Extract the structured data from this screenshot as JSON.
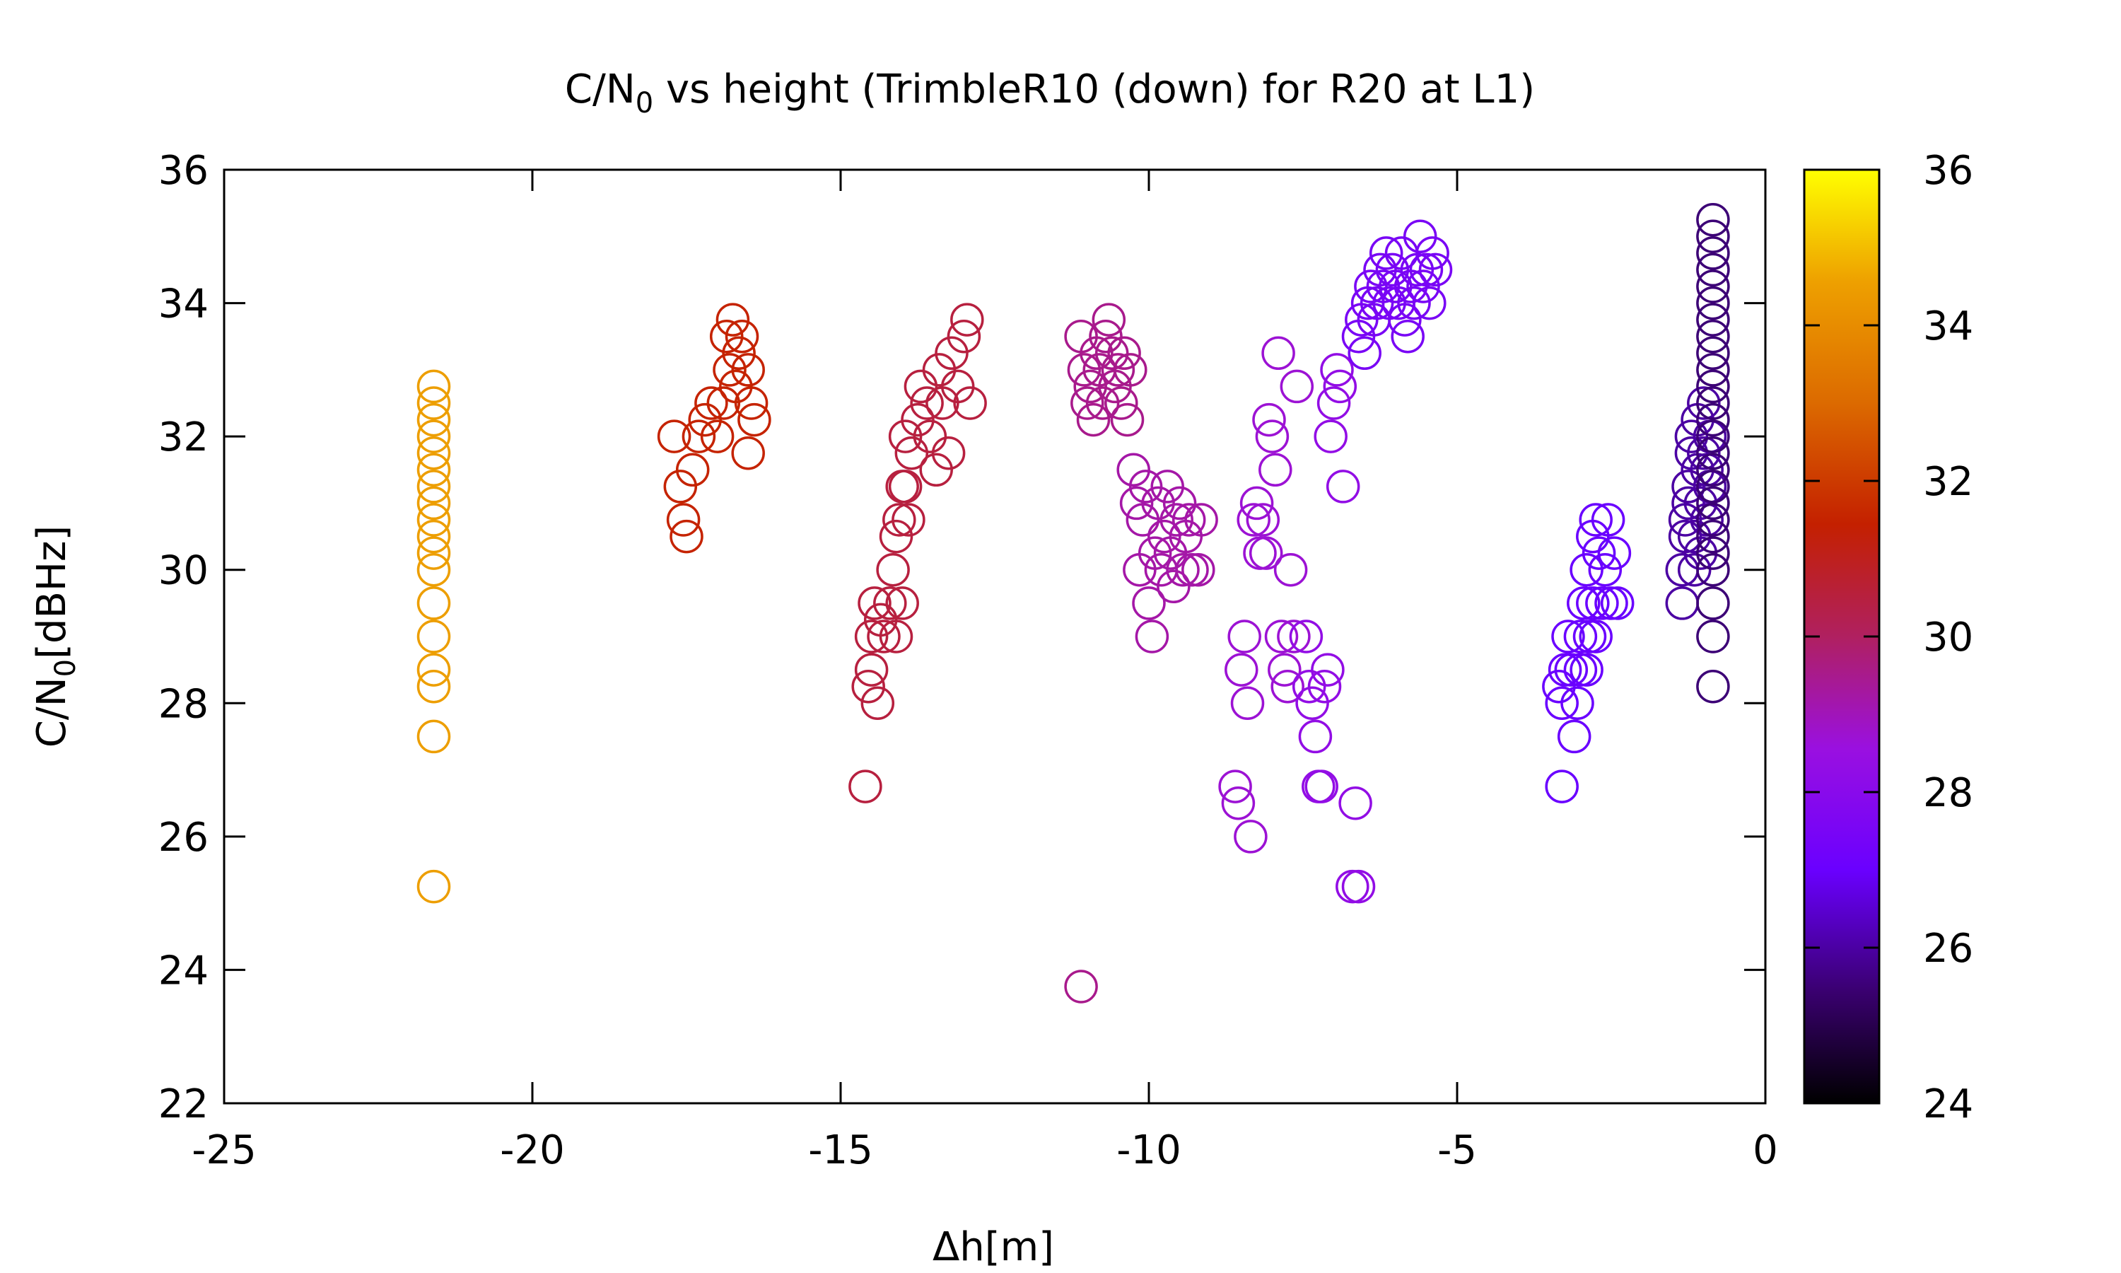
{
  "chart_data": {
    "type": "scatter",
    "title": "C/N",
    "title_subscript": "0",
    "title_rest": " vs height (TrimbleR10 (down) for R20 at L1)",
    "xlabel": "Δh[m]",
    "ylabel": "C/N",
    "ylabel_subscript": "0",
    "ylabel_rest": "[dBHz]",
    "xlim": [
      -25,
      0
    ],
    "ylim": [
      22,
      36
    ],
    "xticks": [
      -25,
      -20,
      -15,
      -10,
      -5,
      0
    ],
    "yticks": [
      22,
      24,
      26,
      28,
      30,
      32,
      34,
      36
    ],
    "xtick_labels": [
      "-25",
      "-20",
      "-15",
      "-10",
      "-5",
      "0"
    ],
    "ytick_labels": [
      "22",
      "24",
      "26",
      "28",
      "30",
      "32",
      "34",
      "36"
    ],
    "colorbar": {
      "range": [
        24,
        36
      ],
      "ticks": [
        24,
        26,
        28,
        30,
        32,
        34,
        36
      ],
      "tick_labels": [
        "24",
        "26",
        "28",
        "30",
        "32",
        "34",
        "36"
      ],
      "palette": "gnuplot"
    },
    "marker": "open-circle",
    "grid": false,
    "clusters": [
      {
        "x": -21.6,
        "color_value": 34.5,
        "y": [
          32.75,
          32.5,
          32.25,
          32.0,
          31.75,
          31.5,
          31.25,
          31.0,
          30.75,
          30.5,
          30.25,
          30.0,
          29.5,
          29.0,
          28.5,
          28.25,
          27.5,
          25.25
        ]
      },
      {
        "x": -17.1,
        "color_value": 31.5,
        "points": [
          [
            -17.7,
            32.0
          ],
          [
            -17.6,
            31.25
          ],
          [
            -17.55,
            30.75
          ],
          [
            -17.5,
            30.5
          ],
          [
            -17.4,
            31.5
          ],
          [
            -17.3,
            32.0
          ],
          [
            -17.2,
            32.25
          ],
          [
            -17.1,
            32.5
          ],
          [
            -17.0,
            32.0
          ],
          [
            -16.9,
            32.5
          ],
          [
            -16.85,
            33.5
          ],
          [
            -16.8,
            33.0
          ],
          [
            -16.75,
            33.75
          ],
          [
            -16.7,
            32.75
          ],
          [
            -16.65,
            33.25
          ],
          [
            -16.6,
            33.5
          ],
          [
            -16.5,
            33.0
          ],
          [
            -16.45,
            32.5
          ],
          [
            -16.4,
            32.25
          ],
          [
            -16.5,
            31.75
          ]
        ]
      },
      {
        "x": -13.8,
        "color_value": 30.5,
        "points": [
          [
            -14.6,
            26.75
          ],
          [
            -14.55,
            28.25
          ],
          [
            -14.5,
            28.5
          ],
          [
            -14.5,
            29.0
          ],
          [
            -14.45,
            29.5
          ],
          [
            -14.4,
            28.0
          ],
          [
            -14.35,
            29.25
          ],
          [
            -14.3,
            29.0
          ],
          [
            -14.2,
            29.5
          ],
          [
            -14.1,
            29.0
          ],
          [
            -14.0,
            29.5
          ],
          [
            -14.15,
            30.0
          ],
          [
            -14.1,
            30.5
          ],
          [
            -14.05,
            30.75
          ],
          [
            -13.95,
            31.25
          ],
          [
            -13.85,
            31.75
          ],
          [
            -13.95,
            32.0
          ],
          [
            -13.75,
            32.25
          ],
          [
            -13.7,
            32.75
          ],
          [
            -13.6,
            32.5
          ],
          [
            -13.55,
            32.0
          ],
          [
            -13.45,
            31.5
          ],
          [
            -13.4,
            33.0
          ],
          [
            -13.35,
            32.5
          ],
          [
            -13.25,
            31.75
          ],
          [
            -13.2,
            33.25
          ],
          [
            -13.1,
            32.75
          ],
          [
            -13.0,
            33.5
          ],
          [
            -12.95,
            33.75
          ],
          [
            -12.9,
            32.5
          ],
          [
            -14.0,
            31.25
          ],
          [
            -13.9,
            30.75
          ]
        ]
      },
      {
        "x": -10.7,
        "color_value": 29.5,
        "points": [
          [
            -11.1,
            33.5
          ],
          [
            -11.05,
            33.0
          ],
          [
            -11.0,
            32.5
          ],
          [
            -10.95,
            32.75
          ],
          [
            -10.9,
            32.25
          ],
          [
            -10.85,
            33.25
          ],
          [
            -10.8,
            33.0
          ],
          [
            -10.75,
            32.5
          ],
          [
            -10.7,
            33.5
          ],
          [
            -10.65,
            33.75
          ],
          [
            -10.6,
            33.25
          ],
          [
            -10.55,
            32.75
          ],
          [
            -10.5,
            33.0
          ],
          [
            -10.45,
            32.5
          ],
          [
            -10.4,
            33.25
          ],
          [
            -10.35,
            32.25
          ],
          [
            -10.3,
            33.0
          ],
          [
            -11.1,
            23.75
          ]
        ]
      },
      {
        "x": -9.8,
        "color_value": 29.2,
        "points": [
          [
            -10.25,
            31.5
          ],
          [
            -10.2,
            31.0
          ],
          [
            -10.15,
            30.0
          ],
          [
            -10.1,
            30.75
          ],
          [
            -10.05,
            31.25
          ],
          [
            -10.0,
            29.5
          ],
          [
            -9.95,
            29.0
          ],
          [
            -9.9,
            30.25
          ],
          [
            -9.85,
            31.0
          ],
          [
            -9.8,
            30.0
          ],
          [
            -9.75,
            30.5
          ],
          [
            -9.7,
            31.25
          ],
          [
            -9.65,
            30.25
          ],
          [
            -9.6,
            29.75
          ],
          [
            -9.55,
            30.75
          ],
          [
            -9.5,
            31.0
          ],
          [
            -9.45,
            30.0
          ],
          [
            -9.4,
            30.5
          ],
          [
            -9.35,
            30.75
          ],
          [
            -9.3,
            30.0
          ],
          [
            -9.2,
            30.0
          ],
          [
            -9.15,
            30.75
          ]
        ]
      },
      {
        "x": -8.2,
        "color_value": 28.7,
        "points": [
          [
            -8.6,
            26.75
          ],
          [
            -8.55,
            26.5
          ],
          [
            -8.5,
            28.5
          ],
          [
            -8.45,
            29.0
          ],
          [
            -8.4,
            28.0
          ],
          [
            -8.35,
            26.0
          ],
          [
            -8.3,
            30.75
          ],
          [
            -8.25,
            31.0
          ],
          [
            -8.2,
            30.25
          ],
          [
            -8.15,
            30.75
          ],
          [
            -8.1,
            30.25
          ],
          [
            -8.05,
            32.25
          ],
          [
            -8.0,
            32.0
          ],
          [
            -7.95,
            31.5
          ],
          [
            -7.9,
            33.25
          ],
          [
            -7.85,
            29.0
          ],
          [
            -7.8,
            28.5
          ],
          [
            -7.75,
            28.25
          ],
          [
            -7.7,
            30.0
          ],
          [
            -7.65,
            29.0
          ],
          [
            -7.6,
            32.75
          ]
        ]
      },
      {
        "x": -7.2,
        "color_value": 28.3,
        "points": [
          [
            -7.45,
            29.0
          ],
          [
            -7.4,
            28.25
          ],
          [
            -7.35,
            28.0
          ],
          [
            -7.3,
            27.5
          ],
          [
            -7.25,
            26.75
          ],
          [
            -7.2,
            26.75
          ],
          [
            -7.15,
            28.25
          ],
          [
            -7.1,
            28.5
          ],
          [
            -7.05,
            32.0
          ],
          [
            -7.0,
            32.5
          ],
          [
            -6.95,
            33.0
          ],
          [
            -6.9,
            32.75
          ],
          [
            -6.85,
            31.25
          ],
          [
            -6.65,
            26.5
          ],
          [
            -6.7,
            25.25
          ],
          [
            -6.6,
            25.25
          ]
        ]
      },
      {
        "x": -5.9,
        "color_value": 27.5,
        "points": [
          [
            -6.6,
            33.5
          ],
          [
            -6.55,
            33.75
          ],
          [
            -6.5,
            33.25
          ],
          [
            -6.45,
            34.0
          ],
          [
            -6.4,
            34.25
          ],
          [
            -6.35,
            33.75
          ],
          [
            -6.3,
            34.0
          ],
          [
            -6.25,
            34.5
          ],
          [
            -6.2,
            34.25
          ],
          [
            -6.15,
            34.75
          ],
          [
            -6.1,
            34.0
          ],
          [
            -6.05,
            34.5
          ],
          [
            -6.0,
            34.25
          ],
          [
            -5.95,
            34.0
          ],
          [
            -5.9,
            34.75
          ],
          [
            -5.85,
            33.75
          ],
          [
            -5.8,
            33.5
          ],
          [
            -5.75,
            34.25
          ],
          [
            -5.7,
            34.0
          ],
          [
            -5.65,
            34.5
          ],
          [
            -5.6,
            35.0
          ],
          [
            -5.55,
            34.25
          ],
          [
            -5.5,
            34.5
          ],
          [
            -5.45,
            34.0
          ],
          [
            -5.4,
            34.75
          ],
          [
            -5.35,
            34.5
          ]
        ]
      },
      {
        "x": -2.9,
        "color_value": 27.0,
        "points": [
          [
            -3.3,
            26.75
          ],
          [
            -3.35,
            28.25
          ],
          [
            -3.3,
            28.0
          ],
          [
            -3.25,
            28.5
          ],
          [
            -3.2,
            29.0
          ],
          [
            -3.15,
            28.5
          ],
          [
            -3.1,
            27.5
          ],
          [
            -3.05,
            28.0
          ],
          [
            -3.0,
            29.0
          ],
          [
            -3.0,
            28.5
          ],
          [
            -2.95,
            29.5
          ],
          [
            -2.9,
            28.5
          ],
          [
            -2.9,
            30.0
          ],
          [
            -2.85,
            29.0
          ],
          [
            -2.8,
            29.5
          ],
          [
            -2.8,
            30.5
          ],
          [
            -2.75,
            30.75
          ],
          [
            -2.75,
            29.0
          ],
          [
            -2.7,
            30.25
          ],
          [
            -2.65,
            29.5
          ],
          [
            -2.6,
            30.0
          ],
          [
            -2.55,
            30.75
          ],
          [
            -2.5,
            29.5
          ],
          [
            -2.45,
            30.25
          ],
          [
            -2.4,
            29.5
          ]
        ]
      },
      {
        "x": -1.0,
        "color_value": 26.0,
        "points": [
          [
            -1.35,
            29.5
          ],
          [
            -1.35,
            30.0
          ],
          [
            -1.3,
            30.5
          ],
          [
            -1.3,
            30.75
          ],
          [
            -1.25,
            31.0
          ],
          [
            -1.25,
            31.25
          ],
          [
            -1.2,
            31.75
          ],
          [
            -1.2,
            32.0
          ],
          [
            -1.15,
            30.0
          ],
          [
            -1.15,
            30.5
          ],
          [
            -1.1,
            31.5
          ],
          [
            -1.1,
            32.25
          ],
          [
            -1.05,
            30.25
          ],
          [
            -1.05,
            31.0
          ],
          [
            -1.0,
            31.75
          ],
          [
            -1.0,
            32.5
          ],
          [
            -0.95,
            30.75
          ],
          [
            -0.95,
            31.5
          ],
          [
            -0.9,
            32.0
          ],
          [
            -0.9,
            31.25
          ]
        ]
      },
      {
        "x": -0.85,
        "color_value": 25.5,
        "y": [
          35.25,
          35.0,
          34.75,
          34.5,
          34.25,
          34.0,
          33.75,
          33.5,
          33.25,
          33.0,
          32.75,
          32.5,
          32.25,
          32.0,
          31.75,
          31.5,
          31.25,
          31.0,
          30.75,
          30.5,
          30.25,
          30.0,
          29.5,
          29.0,
          28.25
        ]
      }
    ]
  },
  "colors": {
    "axis": "#000000",
    "background": "#ffffff"
  }
}
